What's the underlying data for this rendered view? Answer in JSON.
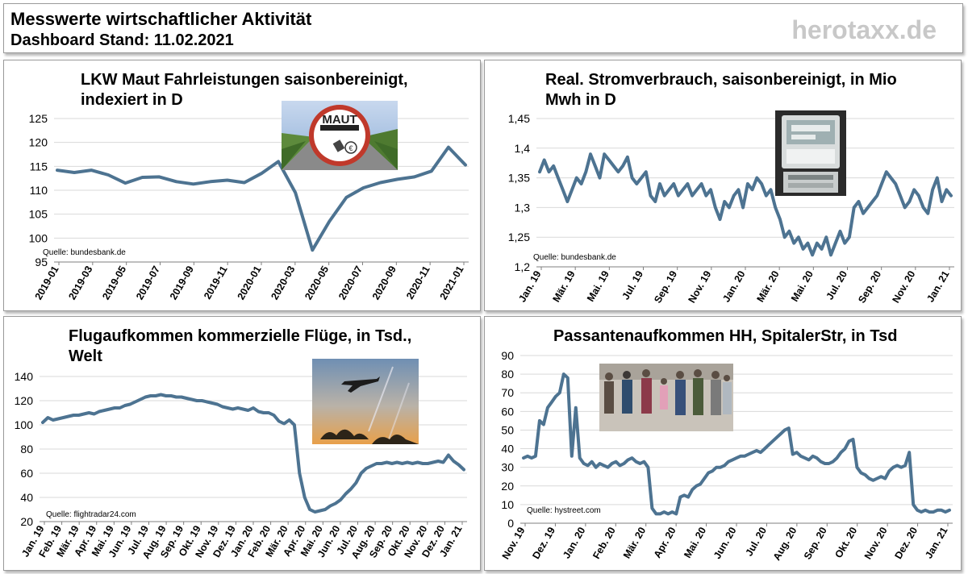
{
  "header": {
    "title": "Messwerte wirtschaftlicher Aktivität",
    "subtitle": "Dashboard Stand: 11.02.2021",
    "brand": "herotaxx.de"
  },
  "colors": {
    "line": "#4d7391",
    "grid": "#d9d9d9",
    "axis": "#7f7f7f"
  },
  "chart_data": [
    {
      "type": "line",
      "title_line1": "LKW Maut Fahrleistungen saisonbereinigt,",
      "title_line2": "indexiert in D",
      "source": "Quelle: bundesbank.de",
      "image": "maut-sign",
      "ylim": [
        95,
        125
      ],
      "yticks": [
        "125",
        "120",
        "115",
        "110",
        "105",
        "100",
        "95"
      ],
      "xtick_labels": [
        "2019-01",
        "2019-03",
        "2019-05",
        "2019-07",
        "2019-09",
        "2019-11",
        "2020-01",
        "2020-03",
        "2020-05",
        "2020-07",
        "2020-09",
        "2020-11",
        "2021-01"
      ],
      "x": [
        "2019-01",
        "2019-02",
        "2019-03",
        "2019-04",
        "2019-05",
        "2019-06",
        "2019-07",
        "2019-08",
        "2019-09",
        "2019-10",
        "2019-11",
        "2019-12",
        "2020-01",
        "2020-02",
        "2020-03",
        "2020-04",
        "2020-05",
        "2020-06",
        "2020-07",
        "2020-08",
        "2020-09",
        "2020-10",
        "2020-11",
        "2020-12",
        "2021-01"
      ],
      "values": [
        114.2,
        113.7,
        114.2,
        113.2,
        111.5,
        112.7,
        112.8,
        111.8,
        111.3,
        111.8,
        112.1,
        111.6,
        113.5,
        116.0,
        109.5,
        97.5,
        103.5,
        108.5,
        110.5,
        111.6,
        112.3,
        112.8,
        114.0,
        119.0,
        115.3
      ],
      "grid": true
    },
    {
      "type": "line",
      "title_line1": "Real. Stromverbrauch, saisonbereinigt, in Mio",
      "title_line2": "Mwh in D",
      "source": "Quelle: bundesbank.de",
      "image": "electricity-meter",
      "ylim": [
        1.2,
        1.45
      ],
      "yticks": [
        "1,45",
        "1,4",
        "1,35",
        "1,3",
        "1,25",
        "1,2"
      ],
      "xtick_labels": [
        "Jan. 19",
        "Mär. 19",
        "Mai. 19",
        "Jul. 19",
        "Sep. 19",
        "Nov. 19",
        "Jan. 20",
        "Mär. 20",
        "Mai. 20",
        "Jul. 20",
        "Sep. 20",
        "Nov. 20",
        "Jan. 21"
      ],
      "values": [
        1.36,
        1.38,
        1.36,
        1.37,
        1.35,
        1.33,
        1.31,
        1.33,
        1.35,
        1.34,
        1.36,
        1.39,
        1.37,
        1.35,
        1.39,
        1.38,
        1.37,
        1.36,
        1.37,
        1.385,
        1.35,
        1.34,
        1.35,
        1.36,
        1.32,
        1.31,
        1.34,
        1.32,
        1.33,
        1.34,
        1.32,
        1.33,
        1.34,
        1.32,
        1.33,
        1.34,
        1.32,
        1.33,
        1.3,
        1.28,
        1.31,
        1.3,
        1.32,
        1.33,
        1.3,
        1.34,
        1.33,
        1.35,
        1.34,
        1.32,
        1.33,
        1.3,
        1.28,
        1.25,
        1.26,
        1.24,
        1.25,
        1.23,
        1.24,
        1.22,
        1.24,
        1.23,
        1.25,
        1.22,
        1.24,
        1.26,
        1.24,
        1.25,
        1.3,
        1.31,
        1.29,
        1.3,
        1.31,
        1.32,
        1.34,
        1.36,
        1.35,
        1.34,
        1.32,
        1.3,
        1.31,
        1.33,
        1.32,
        1.3,
        1.29,
        1.33,
        1.35,
        1.31,
        1.33,
        1.32
      ],
      "grid": true
    },
    {
      "type": "line",
      "title_line1": "Flugaufkommen kommerzielle Flüge, in Tsd.,",
      "title_line2": "Welt",
      "source": "Quelle: flightradar24.com",
      "image": "airplane-sunset",
      "ylim": [
        20,
        140
      ],
      "yticks": [
        "140",
        "120",
        "100",
        "80",
        "60",
        "40",
        "20"
      ],
      "xtick_labels": [
        "Jan. 19",
        "Feb. 19",
        "Mär. 19",
        "Apr. 19",
        "Mai. 19",
        "Jun. 19",
        "Jul. 19",
        "Aug. 19",
        "Sep. 19",
        "Okt. 19",
        "Nov. 19",
        "Dez. 19",
        "Jan. 20",
        "Feb. 20",
        "Mär. 20",
        "Apr. 20",
        "Mai. 20",
        "Jun. 20",
        "Jul. 20",
        "Aug. 20",
        "Sep. 20",
        "Okt. 20",
        "Nov. 20",
        "Dez. 20",
        "Jan. 21"
      ],
      "values": [
        102,
        106,
        104,
        105,
        106,
        107,
        108,
        108,
        109,
        110,
        109,
        111,
        112,
        113,
        114,
        114,
        116,
        117,
        119,
        121,
        123,
        124,
        124,
        125,
        124,
        124,
        123,
        123,
        122,
        121,
        120,
        120,
        119,
        118,
        117,
        115,
        114,
        113,
        114,
        113,
        112,
        114,
        111,
        110,
        110,
        108,
        103,
        101,
        104,
        100,
        60,
        40,
        30,
        28,
        29,
        30,
        33,
        35,
        38,
        43,
        47,
        52,
        60,
        64,
        66,
        68,
        68,
        69,
        68,
        69,
        68,
        69,
        68,
        69,
        68,
        68,
        69,
        70,
        69,
        75,
        70,
        67,
        63
      ],
      "grid": true
    },
    {
      "type": "line",
      "title_line1": "Passantenaufkommen HH, SpitalerStr, in Tsd",
      "title_line2": "",
      "source": "Quelle: hystreet.com",
      "image": "pedestrians",
      "ylim": [
        0,
        90
      ],
      "yticks": [
        "90",
        "80",
        "70",
        "60",
        "50",
        "40",
        "30",
        "20",
        "10",
        "0"
      ],
      "xtick_labels": [
        "Nov. 19",
        "Dez. 19",
        "Jan. 20",
        "Feb. 20",
        "Mär. 20",
        "Apr. 20",
        "Mai. 20",
        "Jun. 20",
        "Jul. 20",
        "Aug. 20",
        "Sep. 20",
        "Okt. 20",
        "Nov. 20",
        "Dez. 20",
        "Jan. 21"
      ],
      "values": [
        35,
        36,
        35,
        36,
        55,
        53,
        62,
        65,
        68,
        70,
        80,
        78,
        36,
        62,
        35,
        32,
        31,
        33,
        30,
        32,
        31,
        30,
        32,
        33,
        31,
        32,
        34,
        35,
        33,
        32,
        33,
        30,
        8,
        5,
        5,
        6,
        5,
        6,
        5,
        14,
        15,
        14,
        18,
        20,
        21,
        24,
        27,
        28,
        30,
        30,
        31,
        33,
        34,
        35,
        36,
        36,
        37,
        38,
        39,
        38,
        40,
        42,
        44,
        46,
        48,
        50,
        51,
        37,
        38,
        36,
        35,
        34,
        36,
        35,
        33,
        32,
        32,
        33,
        35,
        38,
        40,
        44,
        45,
        30,
        27,
        26,
        24,
        23,
        24,
        25,
        24,
        28,
        30,
        31,
        30,
        31,
        38,
        10,
        7,
        6,
        7,
        6,
        6,
        7,
        7,
        6,
        7
      ],
      "grid": true
    }
  ]
}
